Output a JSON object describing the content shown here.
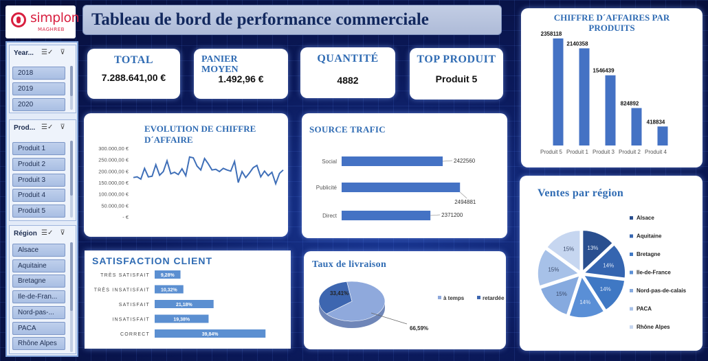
{
  "logo": {
    "name": "simplon",
    "sub": "MAGHREB"
  },
  "header": {
    "title": "Tableau de bord de performance commerciale"
  },
  "slicers": [
    {
      "title": "Year...",
      "items": [
        "2018",
        "2019",
        "2020"
      ]
    },
    {
      "title": "Prod...",
      "items": [
        "Produit 1",
        "Produit 2",
        "Produit 3",
        "Produit 4",
        "Produit 5"
      ]
    },
    {
      "title": "Région",
      "items": [
        "Alsace",
        "Aquitaine",
        "Bretagne",
        "Ile-de-Fran...",
        "Nord-pas-...",
        "PACA",
        "Rhône Alpes"
      ]
    }
  ],
  "kpis": {
    "total": {
      "label": "TOTAL",
      "value": "7.288.641,00 €"
    },
    "panier": {
      "label_l1": "PANIER",
      "label_l2": "MOYEN",
      "value": "1.492,96 €"
    },
    "quantite": {
      "label": "QUANTITÉ",
      "value": "4882"
    },
    "top": {
      "label": "TOP PRODUIT",
      "value": "Produit 5"
    }
  },
  "chart_data": [
    {
      "id": "ca_produits",
      "type": "bar",
      "title_l1": "CHIFFRE D´AFFAIRES PAR",
      "title_l2": "PRODUITS",
      "categories": [
        "Produit 5",
        "Produit 1",
        "Produit 3",
        "Produit 2",
        "Produit 4"
      ],
      "values": [
        2358118,
        2140358,
        1546439,
        824892,
        418834
      ],
      "ylim": [
        0,
        2500000
      ],
      "color": "#4472c4"
    },
    {
      "id": "evolution",
      "type": "line",
      "title_l1": "EVOLUTION DE CHIFFRE",
      "title_l2": "D´AFFAIRE",
      "yticks": [
        "300.000,00 €",
        "250.000,00 €",
        "200.000,00 €",
        "150.000,00 €",
        "100.000,00 €",
        "50.000,00 €",
        "-   €"
      ],
      "ylim": [
        0,
        300000
      ],
      "values": [
        172000,
        175000,
        165000,
        212000,
        175000,
        178000,
        228000,
        182000,
        198000,
        245000,
        188000,
        195000,
        185000,
        210000,
        180000,
        262000,
        258000,
        222000,
        205000,
        255000,
        232000,
        205000,
        208000,
        198000,
        212000,
        205000,
        200000,
        242000,
        150000,
        198000,
        172000,
        192000,
        215000,
        225000,
        175000,
        200000,
        180000,
        195000,
        145000,
        190000,
        205000
      ],
      "color": "#3f6fb8"
    },
    {
      "id": "source_trafic",
      "type": "bar",
      "orientation": "horizontal",
      "title": "SOURCE TRAFIC",
      "categories": [
        "Social",
        "Publicité",
        "Direct"
      ],
      "values": [
        2422560,
        2494881,
        2371200
      ],
      "value_labels": [
        "2422560",
        "2494881",
        "2371200"
      ],
      "xlim": [
        2000000,
        2500000
      ],
      "color": "#4472c4"
    },
    {
      "id": "satisfaction",
      "type": "bar",
      "orientation": "horizontal",
      "title": "SATISFACTION CLIENT",
      "categories": [
        "TRÈS SATISFAIT",
        "TRÈS INSATISFAIT",
        "SATISFAIT",
        "INSATISFAIT",
        "CORRECT"
      ],
      "values": [
        9.28,
        10.32,
        21.18,
        19.38,
        39.84
      ],
      "value_labels": [
        "9,28%",
        "10,32%",
        "21,18%",
        "19,38%",
        "39,84%"
      ],
      "xlim": [
        0,
        42
      ],
      "color": "#5b8fd1"
    },
    {
      "id": "livraison",
      "type": "pie",
      "title": "Taux de livraison",
      "categories": [
        "à temps",
        "retardée"
      ],
      "values": [
        66.59,
        33.41
      ],
      "value_labels": [
        "66,59%",
        "33,41%"
      ],
      "colors": [
        "#8fa9dc",
        "#3d66b0"
      ],
      "legend": "right"
    },
    {
      "id": "ventes_region",
      "type": "pie",
      "title": "Ventes par région",
      "categories": [
        "Alsace",
        "Aquitaine",
        "Bretagne",
        "Ile-de-France",
        "Nord-pas-de-calais",
        "PACA",
        "Rhône Alpes"
      ],
      "values": [
        13,
        14,
        14,
        14,
        15,
        15,
        15
      ],
      "value_labels": [
        "13%",
        "14%",
        "14%",
        "14%",
        "15%",
        "15%",
        "15%"
      ],
      "colors": [
        "#2a4f8f",
        "#3565b0",
        "#3f78c4",
        "#5a8fd6",
        "#86aadf",
        "#a7c1e8",
        "#c6d6f0"
      ],
      "legend": "right"
    }
  ]
}
